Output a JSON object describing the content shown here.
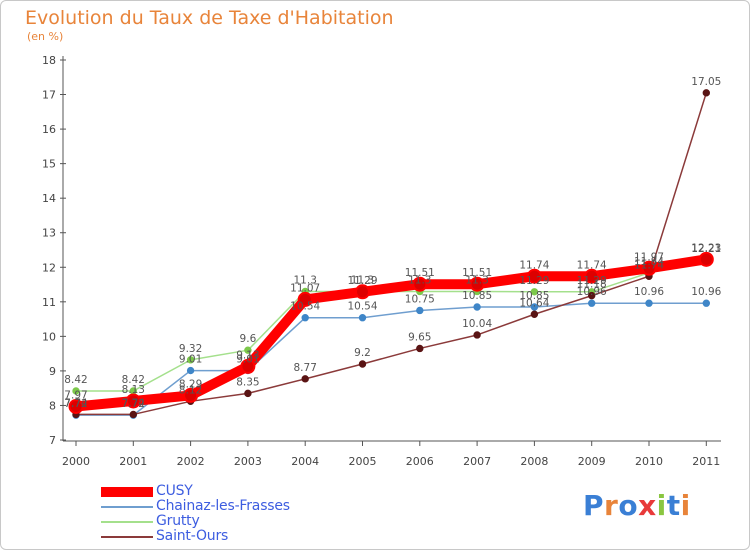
{
  "title": "Evolution du Taux de Taxe d'Habitation",
  "subtitle": "(en %)",
  "logo": {
    "text": "Proxiti",
    "letters": [
      "P",
      "r",
      "o",
      "x",
      "i",
      "t",
      "i"
    ],
    "colors": [
      "#3a7fd5",
      "#e8843a",
      "#3a7fd5",
      "#e83a3a",
      "#8ac640",
      "#3a7fd5",
      "#e8843a"
    ]
  },
  "chart_data": {
    "type": "line",
    "x": [
      "2000",
      "2001",
      "2002",
      "2003",
      "2004",
      "2005",
      "2006",
      "2007",
      "2008",
      "2009",
      "2010",
      "2011"
    ],
    "ylim": [
      7,
      18
    ],
    "yticks": [
      "7",
      "8",
      "9",
      "10",
      "11",
      "12",
      "13",
      "14",
      "15",
      "16",
      "17",
      "18"
    ],
    "grid": false,
    "legend": "bottom-left",
    "series": [
      {
        "name": "CUSY",
        "color": "#ff0000",
        "marker": "#dd0000",
        "values": [
          7.97,
          8.13,
          8.29,
          9.13,
          11.07,
          11.29,
          11.51,
          11.51,
          11.74,
          11.74,
          11.97,
          12.23
        ],
        "labels": [
          "7.97",
          "8.13",
          "8.29",
          "9.13",
          "11.07",
          "11.29",
          "11.51",
          "11.51",
          "11.74",
          "11.74",
          "11.97",
          "12.23"
        ]
      },
      {
        "name": "Chainaz-les-Frasses",
        "color": "#6f9ecf",
        "marker": "#3f86c8",
        "values": [
          7.72,
          7.72,
          9.01,
          9.01,
          10.54,
          10.54,
          10.75,
          10.85,
          10.85,
          10.96,
          10.96,
          10.96
        ],
        "labels": [
          "7.72",
          "7.72",
          "9.01",
          "9.01",
          "10.54",
          "10.54",
          "10.75",
          "10.85",
          "10.85",
          "10.96",
          "10.96",
          "10.96"
        ]
      },
      {
        "name": "Grutty",
        "color": "#a4e08c",
        "marker": "#7cc84a",
        "values": [
          8.42,
          8.42,
          9.32,
          9.6,
          11.3,
          11.3,
          11.3,
          11.3,
          11.29,
          11.29,
          11.84,
          12.21
        ],
        "labels": [
          "8.42",
          "8.42",
          "9.32",
          "9.6",
          "11.3",
          "11.3",
          "11.3",
          "11.3",
          "11.29",
          "11.29",
          "11.84",
          "12.21"
        ]
      },
      {
        "name": "Saint-Ours",
        "color": "#8b3a3a",
        "marker": "#5a1414",
        "values": [
          7.74,
          7.74,
          8.12,
          8.35,
          8.77,
          9.2,
          9.65,
          10.04,
          10.64,
          11.18,
          11.74,
          17.05
        ],
        "labels": [
          "7.74",
          "7.74",
          "8.12",
          "8.35",
          "8.77",
          "9.2",
          "9.65",
          "10.04",
          "10.64",
          "11.18",
          "11.74",
          "17.05"
        ]
      }
    ]
  }
}
